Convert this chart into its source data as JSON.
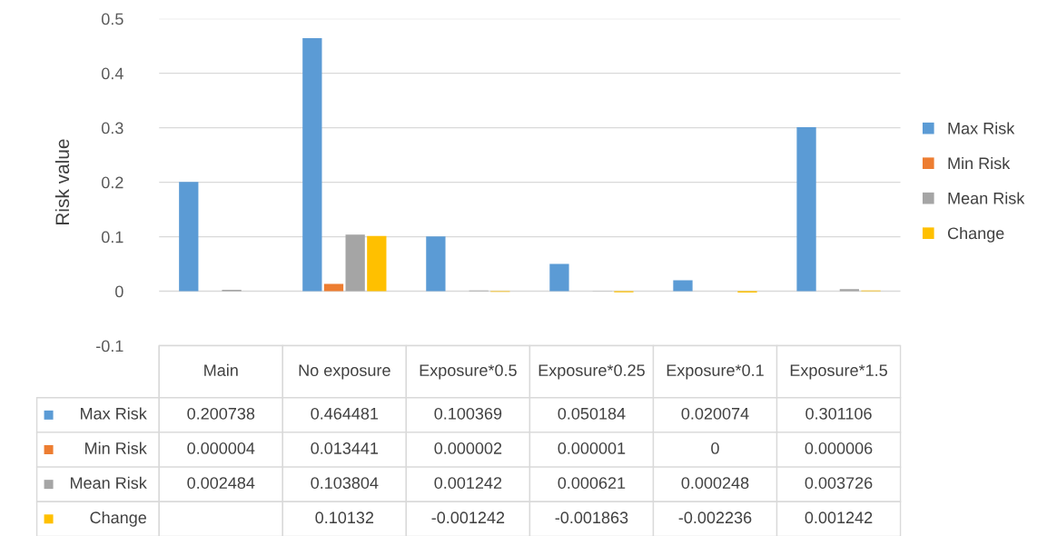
{
  "chart_data": {
    "type": "bar",
    "ylabel": "Risk value",
    "categories": [
      "Main",
      "No exposure",
      "Exposure*0.5",
      "Exposure*0.25",
      "Exposure*0.1",
      "Exposure*1.5"
    ],
    "series": [
      {
        "name": "Max Risk",
        "color": "#5b9bd5",
        "values": [
          0.200738,
          0.464481,
          0.100369,
          0.050184,
          0.020074,
          0.301106
        ],
        "value_labels": [
          "0.200738",
          "0.464481",
          "0.100369",
          "0.050184",
          "0.020074",
          "0.301106"
        ]
      },
      {
        "name": "Min Risk",
        "color": "#ed7d31",
        "values": [
          4e-06,
          0.013441,
          2e-06,
          1e-06,
          0,
          6e-06
        ],
        "value_labels": [
          "0.000004",
          "0.013441",
          "0.000002",
          "0.000001",
          "0",
          "0.000006"
        ]
      },
      {
        "name": "Mean Risk",
        "color": "#a5a5a5",
        "values": [
          0.002484,
          0.103804,
          0.001242,
          0.000621,
          0.000248,
          0.003726
        ],
        "value_labels": [
          "0.002484",
          "0.103804",
          "0.001242",
          "0.000621",
          "0.000248",
          "0.003726"
        ]
      },
      {
        "name": "Change",
        "color": "#ffc000",
        "values": [
          null,
          0.10132,
          -0.001242,
          -0.001863,
          -0.002236,
          0.001242
        ],
        "value_labels": [
          null,
          "0.10132",
          "-0.001242",
          "-0.001863",
          "-0.002236",
          "0.001242"
        ]
      }
    ],
    "ylim": [
      -0.1,
      0.5
    ],
    "yticks": [
      -0.1,
      0,
      0.1,
      0.2,
      0.3,
      0.4,
      0.5
    ],
    "grid": "y",
    "legend": "right"
  }
}
